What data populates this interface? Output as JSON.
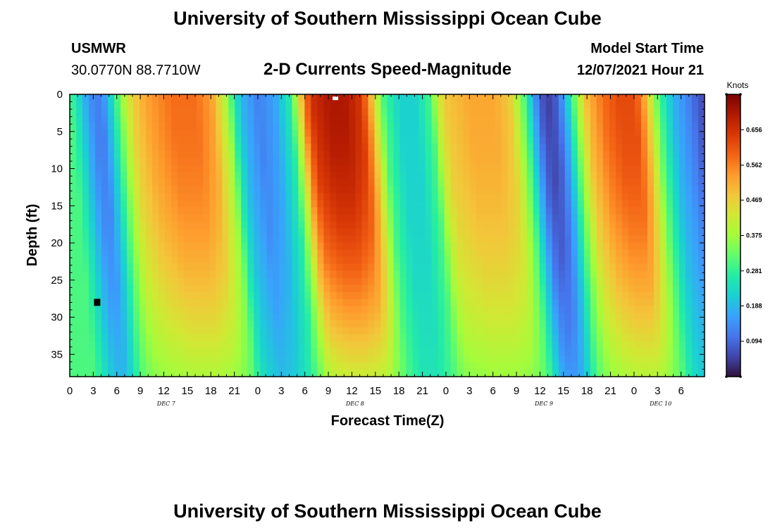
{
  "header": {
    "title": "University of Southern Mississippi Ocean Cube",
    "station_id": "USMWR",
    "location": "30.0770N  88.7710W",
    "plot_title": "2-D Currents Speed-Magnitude",
    "model_start_label": "Model Start Time",
    "model_start_value": "12/07/2021 Hour 21"
  },
  "footer": {
    "title": "University of Southern Mississippi Ocean Cube"
  },
  "colorbar": {
    "unit": "Knots",
    "ticks": [
      "0.094",
      "0.188",
      "0.281",
      "0.375",
      "0.469",
      "0.562",
      "0.656"
    ],
    "tick_values": [
      0.094,
      0.188,
      0.281,
      0.375,
      0.469,
      0.562,
      0.656
    ],
    "range": [
      0.0,
      0.75
    ],
    "colors": [
      "#30123b",
      "#4145ab",
      "#4675ed",
      "#39a2fc",
      "#1bcfd4",
      "#24eca6",
      "#61fc6c",
      "#a4fc3b",
      "#d1e834",
      "#f3c63a",
      "#fe9b2d",
      "#f36315",
      "#d93806",
      "#b11901",
      "#7a0403"
    ]
  },
  "chart_data": {
    "type": "heatmap",
    "title": "2-D Currents Speed-Magnitude",
    "xlabel": "Forecast Time(Z)",
    "ylabel": "Depth (ft)",
    "x_unit": "forecast hour (Z)",
    "x_range": [
      0,
      81
    ],
    "x_tick_labels": [
      "0",
      "3",
      "6",
      "9",
      "12",
      "15",
      "18",
      "21",
      "0",
      "3",
      "6",
      "9",
      "12",
      "15",
      "18",
      "21",
      "0",
      "3",
      "6",
      "9",
      "12",
      "15",
      "18",
      "21",
      "0",
      "3",
      "6"
    ],
    "x_tick_hours": [
      0,
      3,
      6,
      9,
      12,
      15,
      18,
      21,
      24,
      27,
      30,
      33,
      36,
      39,
      42,
      45,
      48,
      51,
      54,
      57,
      60,
      63,
      66,
      69,
      72,
      75,
      78
    ],
    "day_labels": [
      {
        "label": "DEC 7",
        "hour": 12.3
      },
      {
        "label": "DEC 8",
        "hour": 36.4
      },
      {
        "label": "DEC 9",
        "hour": 60.5
      },
      {
        "label": "DEC 10",
        "hour": 75.4
      }
    ],
    "y_range": [
      0,
      38
    ],
    "y_inverted": true,
    "y_tick_labels": [
      "0",
      "5",
      "10",
      "15",
      "20",
      "25",
      "30",
      "35"
    ],
    "y_tick_values": [
      0,
      5,
      10,
      15,
      20,
      25,
      30,
      35
    ],
    "colorbar_unit": "Knots",
    "value_range": [
      0.0,
      0.75
    ],
    "surface_speed_knots": [
      [
        0,
        0.3
      ],
      [
        1,
        0.24
      ],
      [
        2,
        0.17
      ],
      [
        3,
        0.12
      ],
      [
        4,
        0.12
      ],
      [
        5,
        0.2
      ],
      [
        6,
        0.3
      ],
      [
        7,
        0.4
      ],
      [
        8,
        0.47
      ],
      [
        10,
        0.53
      ],
      [
        13,
        0.58
      ],
      [
        16,
        0.58
      ],
      [
        18,
        0.53
      ],
      [
        20,
        0.38
      ],
      [
        21,
        0.25
      ],
      [
        22,
        0.18
      ],
      [
        24,
        0.12
      ],
      [
        26,
        0.16
      ],
      [
        28,
        0.26
      ],
      [
        29,
        0.4
      ],
      [
        30,
        0.58
      ],
      [
        31,
        0.66
      ],
      [
        33,
        0.7
      ],
      [
        35,
        0.7
      ],
      [
        37,
        0.65
      ],
      [
        38,
        0.56
      ],
      [
        39,
        0.42
      ],
      [
        40,
        0.3
      ],
      [
        42,
        0.22
      ],
      [
        44,
        0.22
      ],
      [
        46,
        0.3
      ],
      [
        47,
        0.42
      ],
      [
        48,
        0.48
      ],
      [
        51,
        0.52
      ],
      [
        54,
        0.52
      ],
      [
        56,
        0.48
      ],
      [
        57,
        0.4
      ],
      [
        58,
        0.3
      ],
      [
        59,
        0.18
      ],
      [
        60,
        0.08
      ],
      [
        61,
        0.05
      ],
      [
        62,
        0.08
      ],
      [
        63,
        0.16
      ],
      [
        64,
        0.28
      ],
      [
        65,
        0.4
      ],
      [
        66,
        0.5
      ],
      [
        68,
        0.58
      ],
      [
        70,
        0.62
      ],
      [
        72,
        0.62
      ],
      [
        73,
        0.55
      ],
      [
        74,
        0.44
      ],
      [
        75,
        0.32
      ],
      [
        76,
        0.24
      ],
      [
        77,
        0.18
      ],
      [
        78,
        0.15
      ],
      [
        79,
        0.12
      ],
      [
        80,
        0.08
      ],
      [
        81,
        0.06
      ]
    ],
    "markers": [
      {
        "type": "min",
        "hour": 3.5,
        "depth_ft": 28
      },
      {
        "type": "max",
        "hour": 33.9,
        "depth_ft": 0.3
      }
    ]
  }
}
